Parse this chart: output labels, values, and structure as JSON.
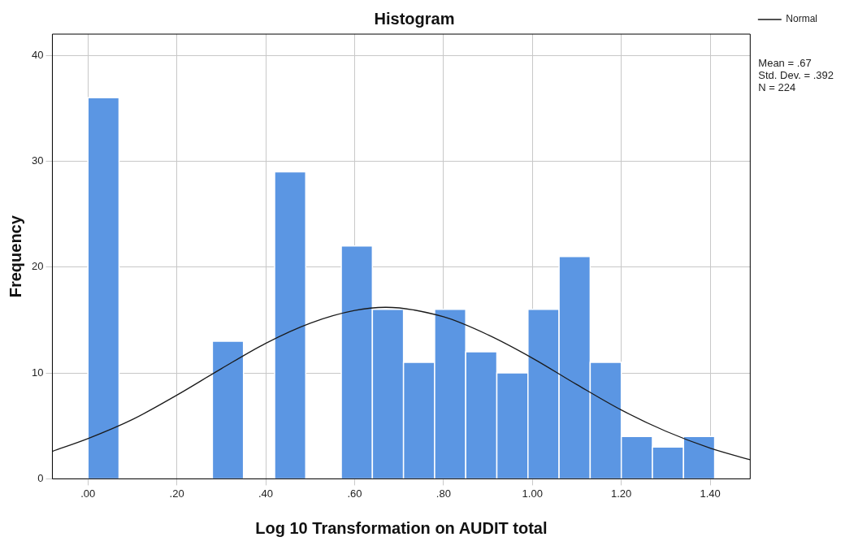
{
  "chart_data": {
    "type": "histogram",
    "title": "Histogram",
    "xlabel": "Log 10 Transformation on AUDIT total",
    "ylabel": "Frequency",
    "bins": [
      0,
      0.07,
      0.28,
      0.35,
      0.42,
      0.49,
      0.57,
      0.64,
      0.71,
      0.78,
      0.85,
      0.92,
      0.99,
      1.06,
      1.13,
      1.2,
      1.27,
      1.34,
      1.41
    ],
    "values": [
      36,
      0,
      13,
      0,
      29,
      0,
      22,
      16,
      11,
      16,
      12,
      10,
      16,
      21,
      11,
      4,
      3,
      4
    ],
    "color": "#5b96e3",
    "series": [
      {
        "name": "Normal",
        "type": "line",
        "color": "#1a1a1a",
        "x": [
          -0.08,
          0,
          0.1,
          0.2,
          0.3,
          0.4,
          0.5,
          0.6,
          0.67,
          0.8,
          0.9,
          1.0,
          1.1,
          1.2,
          1.3,
          1.4,
          1.49
        ],
        "values": [
          2.6,
          3.8,
          5.6,
          7.9,
          10.4,
          12.8,
          14.7,
          15.9,
          16.2,
          15.3,
          13.6,
          11.4,
          8.9,
          6.5,
          4.5,
          2.9,
          1.8
        ]
      }
    ],
    "xlim": [
      -0.08,
      1.49
    ],
    "xticks": [
      {
        "value": 0,
        "label": ".00"
      },
      {
        "value": 0.2,
        "label": ".20"
      },
      {
        "value": 0.4,
        "label": ".40"
      },
      {
        "value": 0.6,
        "label": ".60"
      },
      {
        "value": 0.8,
        "label": ".80"
      },
      {
        "value": 1.0,
        "label": "1.00"
      },
      {
        "value": 1.2,
        "label": "1.20"
      },
      {
        "value": 1.4,
        "label": "1.40"
      }
    ],
    "ylim": [
      0,
      42
    ],
    "yticks": [
      0,
      10,
      20,
      30,
      40
    ],
    "grid": true,
    "legend": "top right",
    "marker": "none",
    "line_style": "solid",
    "annotations": [
      "Mean = .67",
      "Std. Dev. = .392",
      "N = 224"
    ]
  }
}
